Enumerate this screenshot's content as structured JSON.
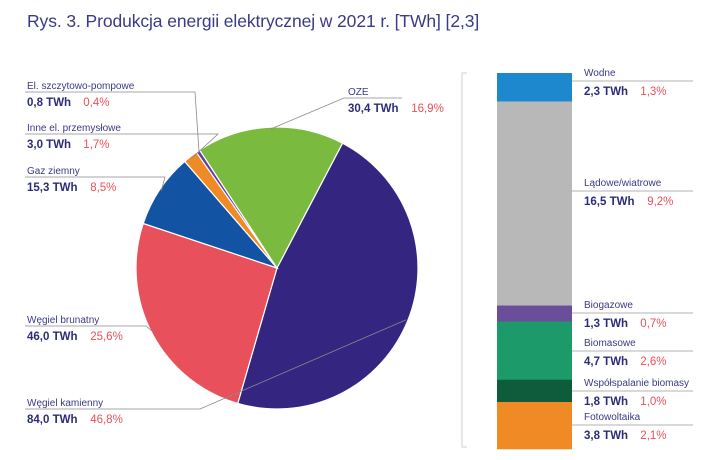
{
  "title": "Rys. 3. Produkcja energii elektrycznej w 2021 r. [TWh] [2,3]",
  "chart_data": [
    {
      "type": "pie",
      "unit": "TWh",
      "slices": [
        {
          "name": "Węgiel kamienny",
          "value": 84.0,
          "value_label": "84,0 TWh",
          "pct_label": "46,8%",
          "color": "#332580"
        },
        {
          "name": "Węgiel brunatny",
          "value": 46.0,
          "value_label": "46,0 TWh",
          "pct_label": "25,6%",
          "color": "#e8505b"
        },
        {
          "name": "Gaz ziemny",
          "value": 15.3,
          "value_label": "15,3 TWh",
          "pct_label": "8,5%",
          "color": "#1253a4"
        },
        {
          "name": "Inne el. przemysłowe",
          "value": 3.0,
          "value_label": "3,0 TWh",
          "pct_label": "1,7%",
          "color": "#f08a24"
        },
        {
          "name": "El. szczytowo-pompowe",
          "value": 0.8,
          "value_label": "0,8 TWh",
          "pct_label": "0,4%",
          "color": "#6a3a9a"
        },
        {
          "name": "OZE",
          "value": 30.4,
          "value_label": "30,4 TWh",
          "pct_label": "16,9%",
          "color": "#7aba3f"
        }
      ]
    },
    {
      "type": "bar",
      "stacked": true,
      "unit": "TWh",
      "segments": [
        {
          "name": "Wodne",
          "value": 2.3,
          "value_label": "2,3 TWh",
          "pct_label": "1,3%",
          "color": "#1e88cf"
        },
        {
          "name": "Lądowe/wiatrowe",
          "value": 16.5,
          "value_label": "16,5 TWh",
          "pct_label": "9,2%",
          "color": "#b8b8b8"
        },
        {
          "name": "Biogazowe",
          "value": 1.3,
          "value_label": "1,3 TWh",
          "pct_label": "0,7%",
          "color": "#6a4e9a"
        },
        {
          "name": "Biomasowe",
          "value": 4.7,
          "value_label": "4,7 TWh",
          "pct_label": "2,6%",
          "color": "#1c9a6a"
        },
        {
          "name": "Współspalanie biomasy",
          "value": 1.8,
          "value_label": "1,8 TWh",
          "pct_label": "1,0%",
          "color": "#0f5c3c"
        },
        {
          "name": "Fotowoltaika",
          "value": 3.8,
          "value_label": "3,8 TWh",
          "pct_label": "2,1%",
          "color": "#f08a24"
        }
      ]
    }
  ]
}
